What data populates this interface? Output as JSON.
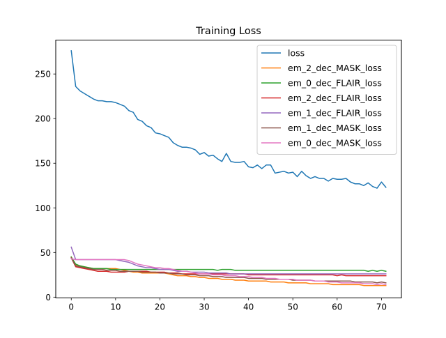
{
  "chart_data": {
    "type": "line",
    "title": "Training Loss",
    "xlabel": "",
    "ylabel": "",
    "xlim": [
      -3.5,
      74.5
    ],
    "ylim": [
      -0.9,
      288
    ],
    "xticks": [
      0,
      10,
      20,
      30,
      40,
      50,
      60,
      70
    ],
    "yticks": [
      0,
      50,
      100,
      150,
      200,
      250
    ],
    "grid": false,
    "legend_position": "top-right",
    "x": [
      0,
      1,
      2,
      3,
      4,
      5,
      6,
      7,
      8,
      9,
      10,
      11,
      12,
      13,
      14,
      15,
      16,
      17,
      18,
      19,
      20,
      21,
      22,
      23,
      24,
      25,
      26,
      27,
      28,
      29,
      30,
      31,
      32,
      33,
      34,
      35,
      36,
      37,
      38,
      39,
      40,
      41,
      42,
      43,
      44,
      45,
      46,
      47,
      48,
      49,
      50,
      51,
      52,
      53,
      54,
      55,
      56,
      57,
      58,
      59,
      60,
      61,
      62,
      63,
      64,
      65,
      66,
      67,
      68,
      69,
      70,
      71
    ],
    "series": [
      {
        "name": "loss",
        "color": "#1f77b4",
        "values": [
          276,
          236,
          231,
          228,
          225,
          222,
          220,
          220,
          219,
          219,
          218,
          216,
          214,
          209,
          207,
          199,
          197,
          192,
          190,
          184,
          183,
          181,
          179,
          173,
          170,
          168,
          168,
          167,
          165,
          160,
          162,
          158,
          159,
          155,
          152,
          161,
          152,
          151,
          151,
          152,
          146,
          145,
          148,
          144,
          148,
          148,
          139,
          140,
          141,
          139,
          140,
          135,
          141,
          136,
          133,
          135,
          133,
          133,
          130,
          133,
          132,
          132,
          133,
          129,
          127,
          127,
          125,
          128,
          124,
          122,
          129,
          123
        ]
      },
      {
        "name": "em_2_dec_MASK_loss",
        "color": "#ff7f0e",
        "values": [
          45,
          36,
          35,
          34,
          33,
          32,
          32,
          32,
          32,
          32,
          32,
          31,
          30,
          29,
          28,
          28,
          27,
          27,
          27,
          27,
          27,
          27,
          26,
          25,
          24,
          24,
          24,
          23,
          23,
          22,
          22,
          21,
          21,
          21,
          20,
          20,
          20,
          19,
          19,
          19,
          18,
          18,
          18,
          18,
          18,
          17,
          17,
          17,
          17,
          16,
          16,
          16,
          16,
          16,
          15,
          15,
          15,
          15,
          15,
          14,
          14,
          14,
          14,
          14,
          14,
          14,
          13,
          13,
          13,
          13,
          13,
          13
        ]
      },
      {
        "name": "em_0_dec_FLAIR_loss",
        "color": "#2ca02c",
        "values": [
          45,
          37,
          35,
          34,
          33,
          32,
          32,
          32,
          32,
          31,
          31,
          31,
          31,
          31,
          31,
          31,
          31,
          31,
          31,
          31,
          31,
          31,
          31,
          31,
          31,
          31,
          31,
          31,
          31,
          31,
          31,
          31,
          31,
          30,
          31,
          31,
          31,
          30,
          30,
          30,
          30,
          30,
          30,
          30,
          30,
          30,
          30,
          30,
          30,
          30,
          30,
          30,
          30,
          30,
          30,
          30,
          30,
          30,
          30,
          30,
          30,
          30,
          30,
          30,
          30,
          30,
          30,
          29,
          30,
          29,
          30,
          29
        ]
      },
      {
        "name": "em_2_dec_FLAIR_loss",
        "color": "#d62728",
        "values": [
          44,
          34,
          33,
          32,
          31,
          30,
          29,
          29,
          29,
          28,
          28,
          28,
          28,
          29,
          29,
          29,
          29,
          29,
          28,
          28,
          28,
          28,
          27,
          27,
          27,
          26,
          26,
          26,
          26,
          26,
          26,
          26,
          26,
          26,
          26,
          26,
          26,
          26,
          26,
          26,
          25,
          25,
          25,
          25,
          25,
          25,
          25,
          25,
          25,
          25,
          25,
          25,
          25,
          25,
          25,
          25,
          25,
          25,
          25,
          25,
          24,
          25,
          24,
          24,
          24,
          24,
          24,
          24,
          24,
          24,
          24,
          24
        ]
      },
      {
        "name": "em_1_dec_FLAIR_loss",
        "color": "#9467bd",
        "values": [
          56,
          42,
          42,
          42,
          42,
          42,
          42,
          42,
          42,
          42,
          42,
          41,
          40,
          39,
          37,
          35,
          34,
          33,
          33,
          32,
          31,
          31,
          31,
          30,
          29,
          29,
          29,
          28,
          28,
          28,
          28,
          27,
          27,
          27,
          27,
          27,
          26,
          26,
          26,
          26,
          26,
          26,
          26,
          26,
          26,
          26,
          26,
          26,
          26,
          26,
          26,
          26,
          26,
          26,
          26,
          26,
          26,
          26,
          26,
          26,
          26,
          26,
          26,
          26,
          26,
          26,
          26,
          26,
          26,
          26,
          26,
          26
        ]
      },
      {
        "name": "em_1_dec_MASK_loss",
        "color": "#8c564b",
        "values": [
          44,
          35,
          34,
          33,
          32,
          31,
          31,
          31,
          30,
          30,
          30,
          29,
          29,
          29,
          29,
          29,
          28,
          28,
          28,
          28,
          27,
          27,
          27,
          26,
          26,
          26,
          25,
          25,
          25,
          24,
          24,
          24,
          23,
          23,
          23,
          22,
          22,
          22,
          22,
          22,
          21,
          21,
          21,
          21,
          20,
          20,
          20,
          20,
          20,
          20,
          19,
          19,
          19,
          19,
          19,
          18,
          18,
          18,
          18,
          18,
          18,
          18,
          18,
          18,
          17,
          17,
          17,
          17,
          17,
          16,
          17,
          16
        ]
      },
      {
        "name": "em_0_dec_MASK_loss",
        "color": "#e377c2",
        "values": [
          43,
          42,
          42,
          42,
          42,
          42,
          42,
          42,
          42,
          42,
          42,
          42,
          42,
          41,
          39,
          37,
          36,
          35,
          34,
          33,
          33,
          32,
          32,
          31,
          30,
          29,
          29,
          28,
          27,
          26,
          26,
          26,
          25,
          25,
          25,
          24,
          24,
          24,
          23,
          23,
          23,
          22,
          22,
          22,
          21,
          21,
          21,
          20,
          20,
          20,
          20,
          19,
          19,
          19,
          19,
          18,
          18,
          18,
          17,
          17,
          17,
          16,
          16,
          16,
          16,
          16,
          15,
          15,
          15,
          14,
          15,
          14
        ]
      }
    ]
  }
}
